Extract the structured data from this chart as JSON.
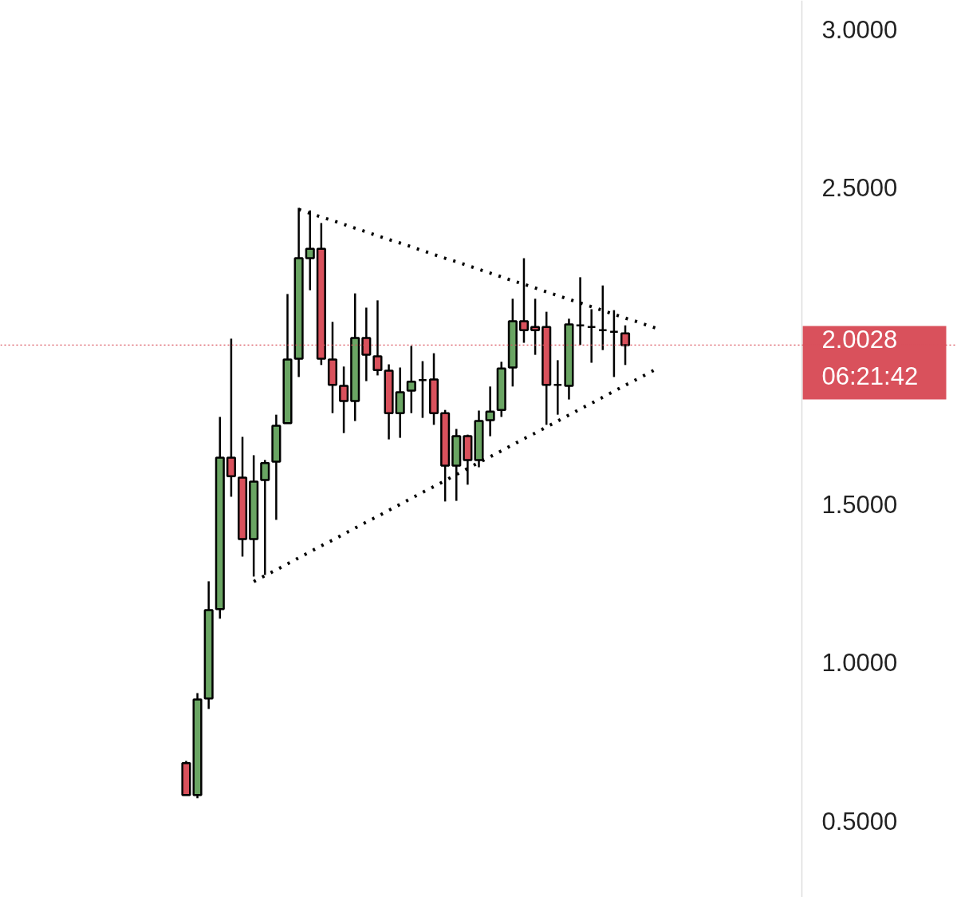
{
  "chart_data": {
    "type": "candlestick",
    "categories": [
      null,
      null,
      null,
      null,
      null,
      null,
      null,
      null,
      null,
      null,
      null,
      null,
      null,
      null,
      null,
      null,
      null,
      null,
      null,
      null,
      null,
      null,
      null,
      null,
      null,
      null,
      null,
      null,
      null,
      null,
      null,
      null,
      null,
      null,
      null,
      null,
      null,
      null,
      null,
      null,
      null,
      null,
      null,
      null,
      null,
      null,
      null,
      null,
      null,
      null,
      null,
      null,
      null,
      null,
      null,
      null,
      null,
      null,
      null,
      null,
      null,
      null,
      null,
      null,
      null,
      null,
      null,
      null,
      null,
      null,
      null,
      null,
      null,
      null,
      null,
      null,
      null,
      null,
      null,
      null,
      null,
      null,
      null,
      null,
      null
    ],
    "ohlc": [
      null,
      null,
      null,
      null,
      null,
      null,
      null,
      null,
      null,
      null,
      null,
      null,
      null,
      null,
      null,
      null,
      [
        0.683,
        0.69,
        0.582,
        0.582
      ],
      [
        0.582,
        0.904,
        0.572,
        0.884
      ],
      [
        0.887,
        1.257,
        0.854,
        1.166
      ],
      [
        1.169,
        1.776,
        1.139,
        1.647
      ],
      [
        1.647,
        2.023,
        1.524,
        1.589
      ],
      [
        1.584,
        1.713,
        1.335,
        1.39
      ],
      [
        1.39,
        1.655,
        1.272,
        1.572
      ],
      [
        1.577,
        1.64,
        1.277,
        1.63
      ],
      [
        1.635,
        1.783,
        1.451,
        1.748
      ],
      [
        1.756,
        2.164,
        1.756,
        1.957
      ],
      [
        1.96,
        2.436,
        1.902,
        2.277
      ],
      [
        2.277,
        2.428,
        2.176,
        2.307
      ],
      [
        2.307,
        2.388,
        1.94,
        1.96
      ],
      [
        1.957,
        2.076,
        1.788,
        1.877
      ],
      [
        1.874,
        1.935,
        1.725,
        1.826
      ],
      [
        1.826,
        2.166,
        1.763,
        2.025
      ],
      [
        2.025,
        2.121,
        1.889,
        1.972
      ],
      [
        1.967,
        2.144,
        1.907,
        1.924
      ],
      [
        1.922,
        1.942,
        1.705,
        1.788
      ],
      [
        1.788,
        1.932,
        1.71,
        1.854
      ],
      [
        1.859,
        2.0,
        1.788,
        1.887
      ],
      [
        1.892,
        1.952,
        1.773,
        1.892
      ],
      [
        1.894,
        1.977,
        1.751,
        1.788
      ],
      [
        1.788,
        1.798,
        1.509,
        1.622
      ],
      [
        1.622,
        1.738,
        1.511,
        1.715
      ],
      [
        1.715,
        1.72,
        1.562,
        1.64
      ],
      [
        1.64,
        1.796,
        1.617,
        1.763
      ],
      [
        1.766,
        1.872,
        1.715,
        1.793
      ],
      [
        1.798,
        1.95,
        1.776,
        1.929
      ],
      [
        1.932,
        2.149,
        1.872,
        2.078
      ],
      [
        2.078,
        2.277,
        2.01,
        2.05
      ],
      [
        2.06,
        2.149,
        1.972,
        2.05
      ],
      [
        2.06,
        2.108,
        1.751,
        1.877
      ],
      [
        1.877,
        1.955,
        1.783,
        1.877
      ],
      [
        1.874,
        2.086,
        1.831,
        2.068
      ],
      [
        2.065,
        2.217,
        2.003,
        2.065
      ],
      [
        2.06,
        2.116,
        1.947,
        2.06
      ],
      [
        2.05,
        2.191,
        1.987,
        2.05
      ],
      [
        2.045,
        2.113,
        1.902,
        2.045
      ],
      [
        2.04,
        2.065,
        1.94,
        2.0028
      ],
      null,
      null,
      null,
      null,
      null,
      null,
      null,
      null,
      null,
      null,
      null,
      null,
      null,
      null,
      null,
      null,
      null,
      null,
      null,
      null,
      null,
      null,
      null,
      null,
      null,
      null,
      null,
      null,
      null
    ],
    "colors": [
      null,
      null,
      null,
      null,
      null,
      null,
      null,
      null,
      null,
      null,
      null,
      null,
      null,
      null,
      null,
      null,
      "#d9515c",
      "#6aa563",
      "#6aa563",
      "#6aa563",
      "#d9515c",
      "#d9515c",
      "#6aa563",
      "#6aa563",
      "#6aa563",
      "#6aa563",
      "#6aa563",
      "#6aa563",
      "#d9515c",
      "#d9515c",
      "#d9515c",
      "#6aa563",
      "#d9515c",
      "#d9515c",
      "#d9515c",
      "#6aa563",
      "#6aa563",
      "#000000",
      "#d9515c",
      "#d9515c",
      "#6aa563",
      "#d9515c",
      "#6aa563",
      "#6aa563",
      "#6aa563",
      "#6aa563",
      "#d9515c",
      "#d9515c",
      "#d9515c",
      "#000000",
      "#6aa563",
      "#000000",
      "#000000",
      "#000000",
      "#000000",
      "#d9515c",
      null,
      null,
      null,
      null,
      null,
      null,
      null,
      null,
      null,
      null,
      null,
      null,
      null,
      null,
      null,
      null,
      null,
      null,
      null,
      null,
      null,
      null,
      null,
      null,
      null,
      null,
      null,
      null,
      null
    ],
    "series": [
      {
        "type": "line",
        "color": "#000000",
        "line_style": "dotted",
        "values": [
          null,
          null,
          null,
          null,
          null,
          null,
          null,
          null,
          null,
          null,
          null,
          null,
          null,
          null,
          null,
          null,
          null,
          null,
          null,
          null,
          null,
          null,
          null,
          null,
          null,
          null,
          2.431,
          2.419,
          2.407,
          2.396,
          2.384,
          2.372,
          2.36,
          2.348,
          2.336,
          2.325,
          2.313,
          2.301,
          2.289,
          2.277,
          2.266,
          2.254,
          2.242,
          2.23,
          2.218,
          2.206,
          2.195,
          2.183,
          2.171,
          2.159,
          2.147,
          2.136,
          2.124,
          2.112,
          2.1,
          2.088,
          2.077,
          2.065,
          2.053,
          null,
          null,
          null,
          null,
          null,
          null,
          null,
          null,
          null,
          null,
          null,
          null,
          null,
          null,
          null,
          null,
          null,
          null,
          null,
          null,
          null,
          null,
          null,
          null,
          null,
          null
        ]
      },
      {
        "type": "line",
        "color": "#000000",
        "line_style": "dotted",
        "values": [
          null,
          null,
          null,
          null,
          null,
          null,
          null,
          null,
          null,
          null,
          null,
          null,
          null,
          null,
          null,
          null,
          null,
          null,
          null,
          null,
          null,
          null,
          1.256,
          1.275,
          1.293,
          1.312,
          1.331,
          1.35,
          1.369,
          1.387,
          1.406,
          1.425,
          1.444,
          1.462,
          1.481,
          1.5,
          1.519,
          1.538,
          1.556,
          1.575,
          1.594,
          1.613,
          1.632,
          1.65,
          1.669,
          1.688,
          1.707,
          1.725,
          1.744,
          1.763,
          1.782,
          1.801,
          1.819,
          1.838,
          1.857,
          1.876,
          1.894,
          1.913,
          1.932,
          null,
          null,
          null,
          null,
          null,
          null,
          null,
          null,
          null,
          null,
          null,
          null,
          null,
          null,
          null,
          null,
          null,
          null,
          null,
          null,
          null,
          null,
          null,
          null,
          null,
          null
        ]
      }
    ],
    "ylim": [
      0.259,
      3.091
    ],
    "yticks": [
      {
        "value": 0.5,
        "label": "0.5000"
      },
      {
        "value": 1,
        "label": "1.0000"
      },
      {
        "value": 1.5,
        "label": "1.5000"
      },
      {
        "value": 2.5,
        "label": "2.5000"
      },
      {
        "value": 3,
        "label": "3.0000"
      }
    ],
    "ref_lines": [
      {
        "axis": "y",
        "value": 2.0028,
        "label": "2.0028",
        "color": "#d9515c",
        "line_style": "dotted"
      }
    ],
    "annotations": [
      "06:21:42"
    ],
    "tick_labels": "y",
    "grid": false
  }
}
